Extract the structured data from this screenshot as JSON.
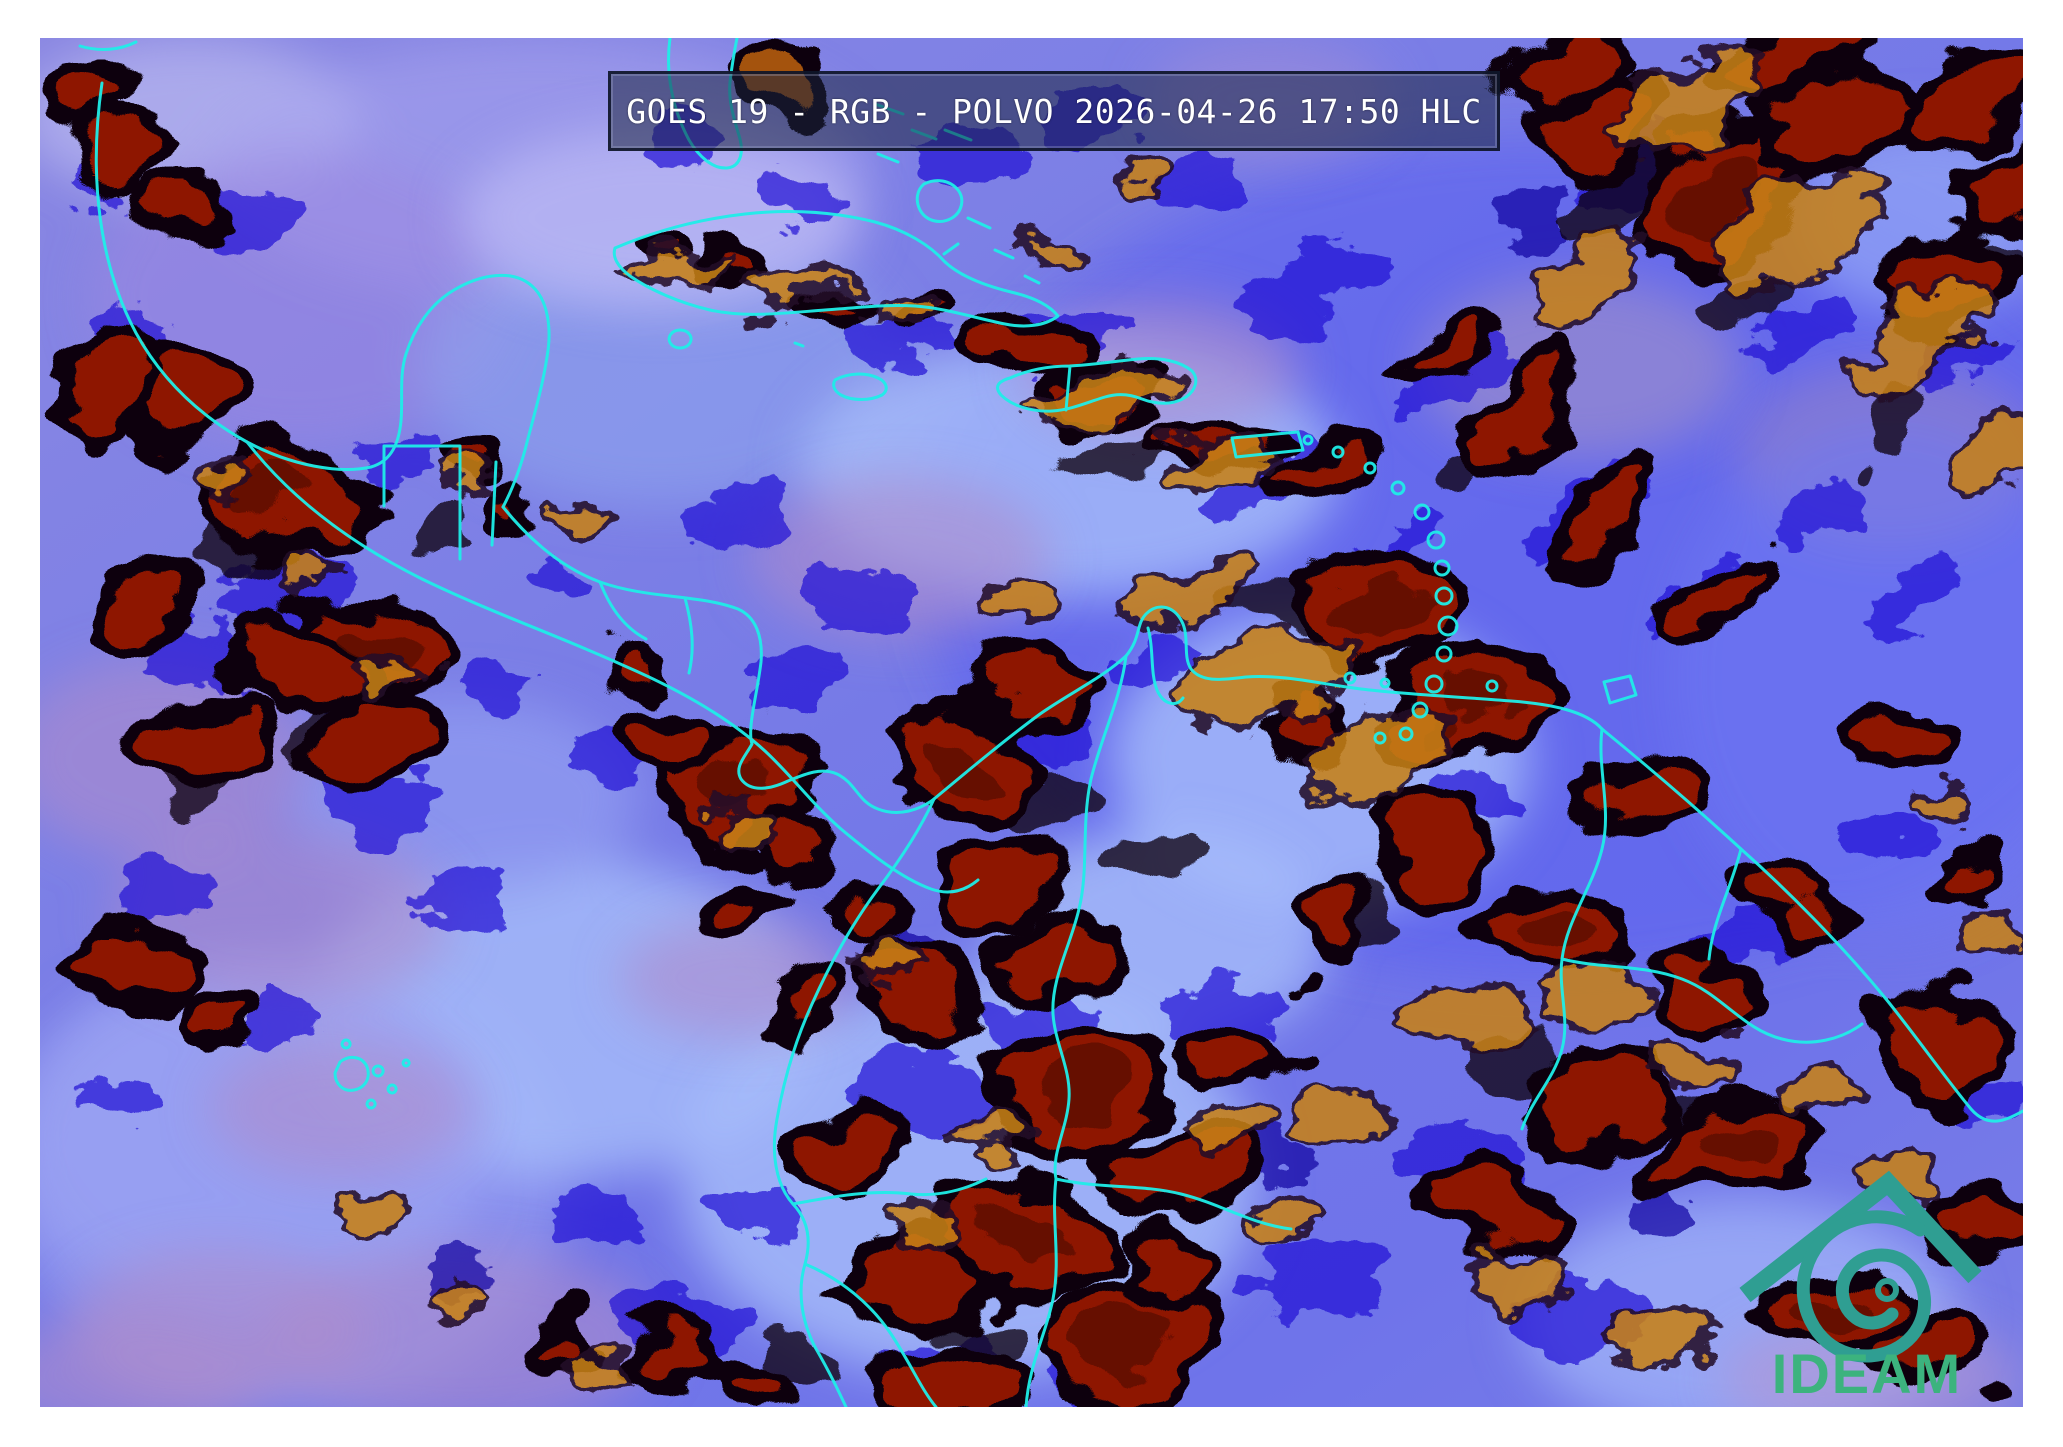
{
  "title_bar": {
    "text": "GOES 19 - RGB - POLVO 2026-04-26 17:50 HLC",
    "satellite": "GOES 19",
    "product": "RGB - POLVO",
    "datetime": "2026-04-26 17:50",
    "time_label": "HLC"
  },
  "logo": {
    "text": "IDEAM"
  },
  "colors": {
    "page_margin": "#ffffff",
    "coastline": "#1feee8",
    "title_text": "#ffffff",
    "title_fill": "rgba(28,36,64,0.55)",
    "title_border": "rgba(14,20,40,0.85)",
    "logo_teal": "#2f9e92",
    "logo_green": "#3cb37e",
    "base_blue": "#7b7fe4",
    "deep_blue_patch": "#2113d4",
    "deeper_blue_patch": "#0d07a0",
    "dark_red_cloud": "#8e1605",
    "red_core": "#5c0c04",
    "black_shadow": "#0a0410",
    "orange_dust": "#c8821a",
    "pink_haze": "#ae8ccc",
    "light_cloud": "#a8befa",
    "pale_corner": "#c9c6f2"
  }
}
